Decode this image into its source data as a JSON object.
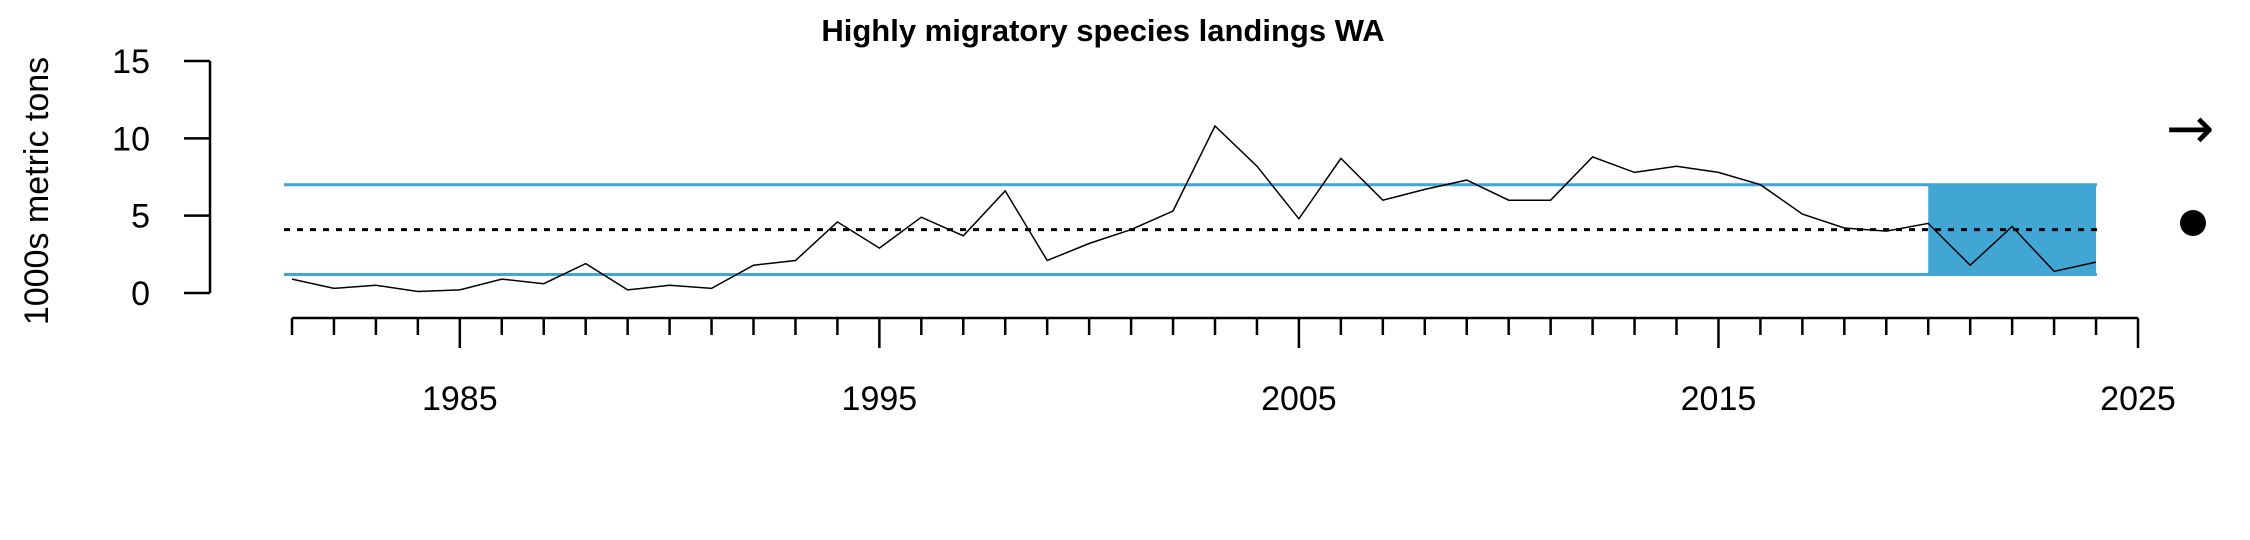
{
  "chart_data": {
    "type": "line",
    "title": "Highly migratory species landings WA",
    "xlabel": "",
    "ylabel": "1000s metric tons",
    "xlim": [
      1981,
      2025
    ],
    "ylim": [
      0,
      15
    ],
    "x_ticks": [
      1985,
      1995,
      2005,
      2015,
      2025
    ],
    "y_ticks": [
      0,
      5,
      10,
      15
    ],
    "x_minor_ticks_every": 1,
    "grid": false,
    "series": [
      {
        "x": [
          1981,
          1982,
          1983,
          1984,
          1985,
          1986,
          1987,
          1988,
          1989,
          1990,
          1991,
          1992,
          1993,
          1994,
          1995,
          1996,
          1997,
          1998,
          1999,
          2000,
          2001,
          2002,
          2003,
          2004,
          2005,
          2006,
          2007,
          2008,
          2009,
          2010,
          2011,
          2012,
          2013,
          2014,
          2015,
          2016,
          2017,
          2018,
          2019,
          2020,
          2021,
          2022,
          2023,
          2024
        ],
        "values": [
          0.9,
          0.3,
          0.5,
          0.1,
          0.2,
          0.9,
          0.6,
          1.9,
          0.2,
          0.5,
          0.3,
          1.8,
          2.1,
          4.6,
          2.9,
          4.9,
          3.7,
          6.6,
          2.1,
          3.2,
          4.1,
          5.3,
          10.8,
          8.2,
          4.8,
          8.7,
          6.0,
          6.7,
          7.3,
          6.0,
          6.0,
          8.8,
          7.8,
          8.2,
          7.8,
          7.0,
          5.1,
          4.2,
          4.0,
          4.5,
          1.8,
          4.3,
          1.4,
          2.0
        ],
        "color": "#000000"
      }
    ],
    "mean": 4.1,
    "upper_sd": 7.0,
    "lower_sd": 1.2,
    "reference_line_color": "#41A6D4",
    "highlight_period": [
      2020,
      2024
    ],
    "highlight_color": "#41A6D4",
    "trend_symbol": "→",
    "status_symbol": "●"
  }
}
